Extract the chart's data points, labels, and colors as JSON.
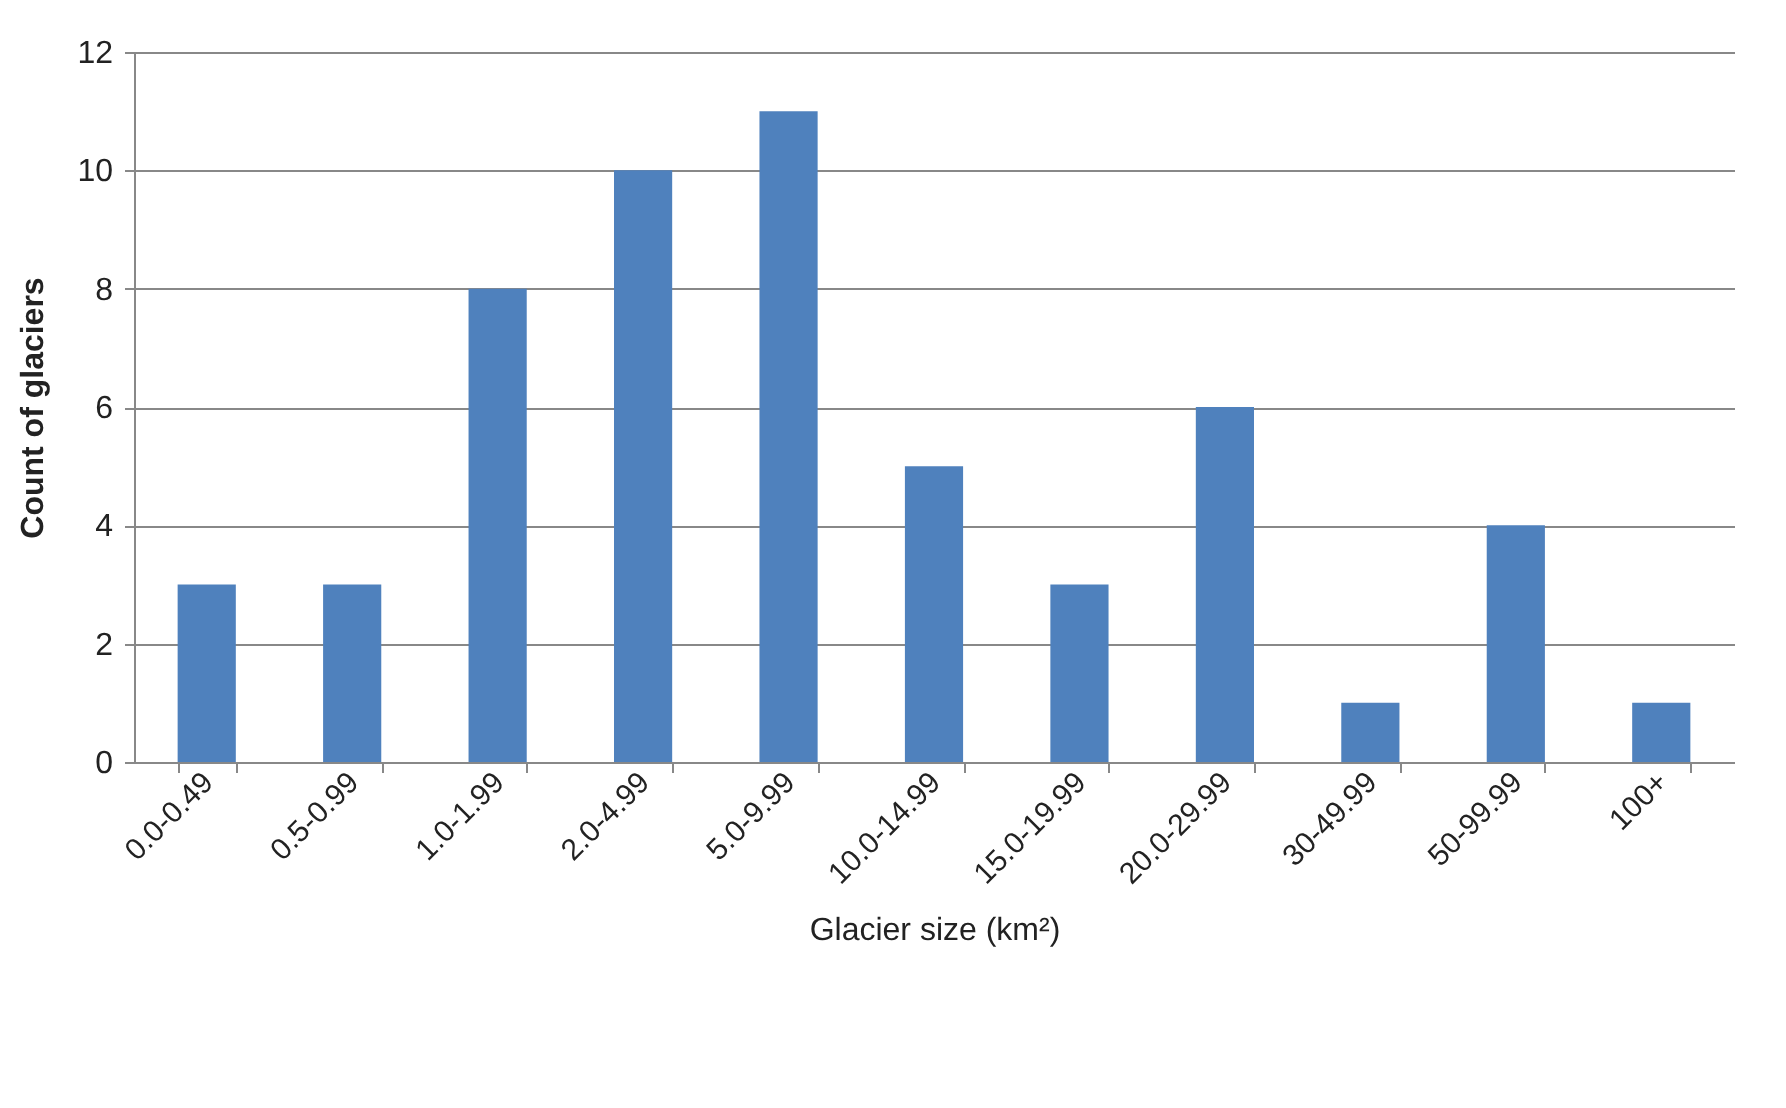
{
  "chart_data": {
    "type": "bar",
    "xlabel": "Glacier size (km²)",
    "ylabel": "Count of glaciers",
    "categories": [
      "0.0-0.49",
      "0.5-0.99",
      "1.0-1.99",
      "2.0-4.99",
      "5.0-9.99",
      "10.0-14.99",
      "15.0-19.99",
      "20.0-29.99",
      "30-49.99",
      "50-99.99",
      "100+"
    ],
    "values": [
      3,
      3,
      8,
      10,
      11,
      5,
      3,
      6,
      1,
      4,
      1
    ],
    "color": "#4f81bd",
    "ylim": [
      0,
      12
    ],
    "yticks": [
      0,
      2,
      4,
      6,
      8,
      10,
      12
    ],
    "grid": "y"
  }
}
